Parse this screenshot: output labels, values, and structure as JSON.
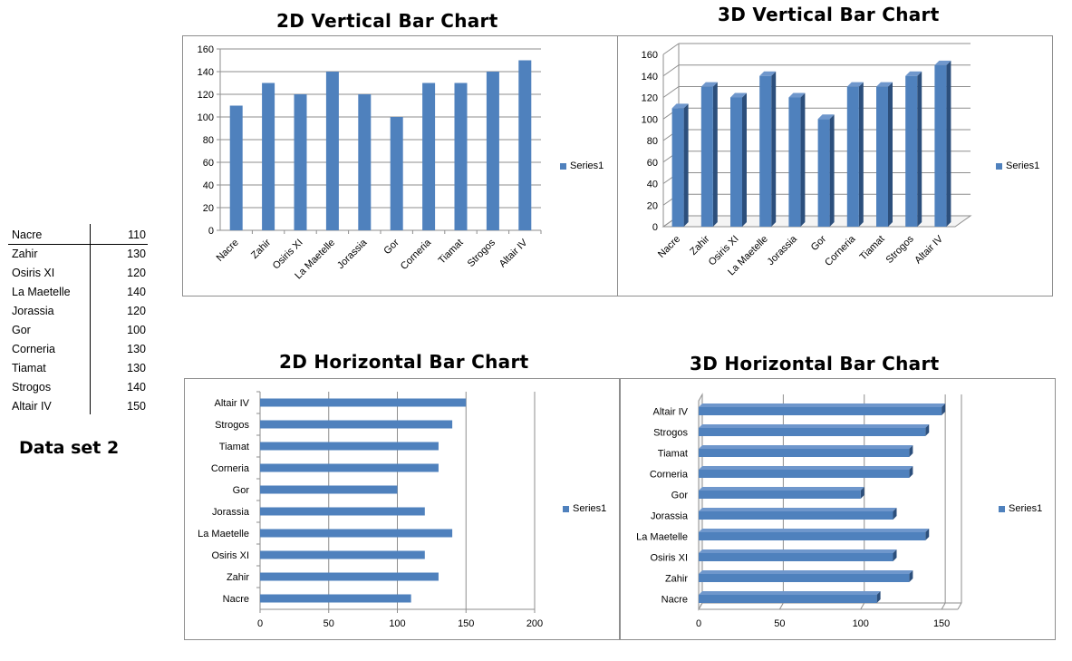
{
  "data_table": {
    "rows": [
      {
        "name": "Nacre",
        "value": 110
      },
      {
        "name": "Zahir",
        "value": 130
      },
      {
        "name": "Osiris XI",
        "value": 120
      },
      {
        "name": "La Maetelle",
        "value": 140
      },
      {
        "name": "Jorassia",
        "value": 120
      },
      {
        "name": "Gor",
        "value": 100
      },
      {
        "name": "Corneria",
        "value": 130
      },
      {
        "name": "Tiamat",
        "value": 130
      },
      {
        "name": "Strogos",
        "value": 140
      },
      {
        "name": "Altair IV",
        "value": 150
      }
    ],
    "label": "Data set 2"
  },
  "colors": {
    "bar": "#4f81bd",
    "bar_dark": "#2c4f7c",
    "bar_top": "#6f97cc"
  },
  "chart_data": [
    {
      "type": "bar",
      "title": "2D Vertical Bar Chart",
      "categories": [
        "Nacre",
        "Zahir",
        "Osiris XI",
        "La Maetelle",
        "Jorassia",
        "Gor",
        "Corneria",
        "Tiamat",
        "Strogos",
        "Altair IV"
      ],
      "series": [
        {
          "name": "Series1",
          "values": [
            110,
            130,
            120,
            140,
            120,
            100,
            130,
            130,
            140,
            150
          ]
        }
      ],
      "ylim": [
        0,
        160
      ],
      "yticks": [
        0,
        20,
        40,
        60,
        80,
        100,
        120,
        140,
        160
      ],
      "grid": true,
      "legend": "right",
      "orientation": "vertical",
      "style": "2d"
    },
    {
      "type": "bar",
      "title": "3D Vertical Bar Chart",
      "categories": [
        "Nacre",
        "Zahir",
        "Osiris XI",
        "La Maetelle",
        "Jorassia",
        "Gor",
        "Corneria",
        "Tiamat",
        "Strogos",
        "Altair IV"
      ],
      "series": [
        {
          "name": "Series1",
          "values": [
            110,
            130,
            120,
            140,
            120,
            100,
            130,
            130,
            140,
            150
          ]
        }
      ],
      "ylim": [
        0,
        160
      ],
      "yticks": [
        0,
        20,
        40,
        60,
        80,
        100,
        120,
        140,
        160
      ],
      "grid": true,
      "legend": "right",
      "orientation": "vertical",
      "style": "3d"
    },
    {
      "type": "bar",
      "title": "2D Horizontal Bar Chart",
      "categories": [
        "Nacre",
        "Zahir",
        "Osiris XI",
        "La Maetelle",
        "Jorassia",
        "Gor",
        "Corneria",
        "Tiamat",
        "Strogos",
        "Altair IV"
      ],
      "series": [
        {
          "name": "Series1",
          "values": [
            110,
            130,
            120,
            140,
            120,
            100,
            130,
            130,
            140,
            150
          ]
        }
      ],
      "xlim": [
        0,
        200
      ],
      "xticks": [
        0,
        50,
        100,
        150,
        200
      ],
      "grid": true,
      "legend": "right",
      "orientation": "horizontal",
      "style": "2d"
    },
    {
      "type": "bar",
      "title": "3D Horizontal Bar Chart",
      "categories": [
        "Nacre",
        "Zahir",
        "Osiris XI",
        "La Maetelle",
        "Jorassia",
        "Gor",
        "Corneria",
        "Tiamat",
        "Strogos",
        "Altair IV"
      ],
      "series": [
        {
          "name": "Series1",
          "values": [
            110,
            130,
            120,
            140,
            120,
            100,
            130,
            130,
            140,
            150
          ]
        }
      ],
      "xlim": [
        0,
        160
      ],
      "xticks": [
        0,
        50,
        100,
        150
      ],
      "grid": true,
      "legend": "right",
      "orientation": "horizontal",
      "style": "3d"
    }
  ]
}
